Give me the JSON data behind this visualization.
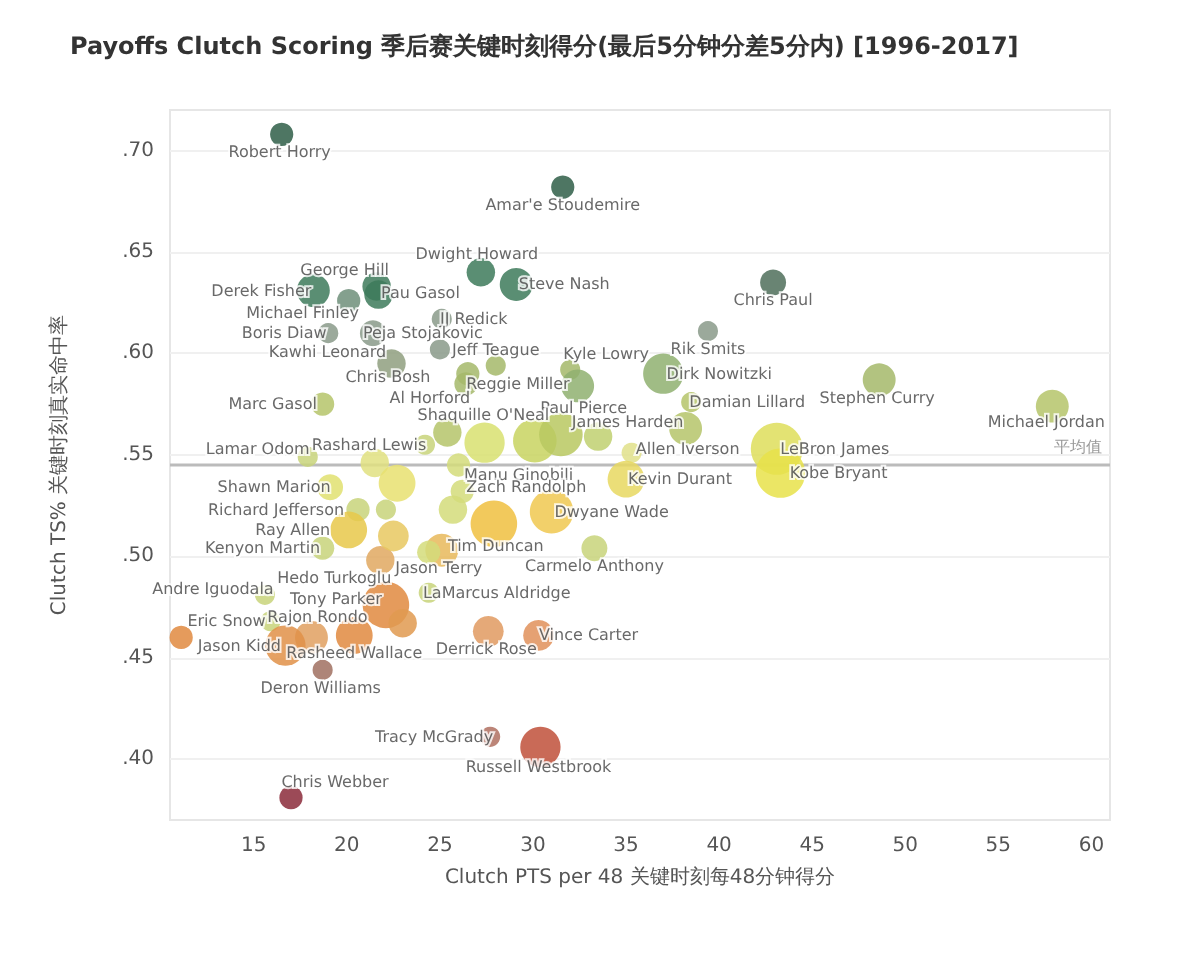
{
  "chart_data": {
    "type": "bubble",
    "title": "Payoffs Clutch Scoring 季后赛关键时刻得分(最后5分钟分差5分内) [1996-2017]",
    "xlabel": "Clutch PTS per 48 关键时刻每48分钟得分",
    "ylabel": "Clutch TS% 关键时刻真实命中率",
    "xlim": [
      10.5,
      61
    ],
    "xticks": [
      15,
      20,
      25,
      30,
      35,
      40,
      45,
      50,
      55,
      60
    ],
    "ylim": [
      0.37,
      0.72
    ],
    "yticks": [
      {
        "value": 0.4,
        "label": ".40"
      },
      {
        "value": 0.45,
        "label": ".45"
      },
      {
        "value": 0.5,
        "label": ".50"
      },
      {
        "value": 0.55,
        "label": ".55"
      },
      {
        "value": 0.6,
        "label": ".60"
      },
      {
        "value": 0.65,
        "label": ".65"
      },
      {
        "value": 0.7,
        "label": ".70"
      }
    ],
    "grid": "y",
    "ref_lines": [
      {
        "axis": "y",
        "value": 0.545,
        "label": "平均值",
        "color": "#bbbbbb"
      }
    ],
    "x": [
      16.5,
      31.6,
      27.2,
      18.2,
      20.1,
      21.6,
      21.7,
      29.1,
      25.1,
      19.0,
      21.4,
      25.0,
      28.0,
      22.4,
      26.4,
      26.5,
      32.0,
      32.4,
      18.7,
      25.4,
      24.2,
      17.9,
      26.0,
      42.9,
      39.4,
      37.0,
      38.5,
      48.6,
      57.9,
      38.2,
      35.3,
      43.1,
      43.3,
      35.0,
      19.1,
      20.6,
      20.1,
      18.7,
      26.2,
      31.0,
      25.1,
      24.4,
      33.3,
      15.6,
      21.8,
      22.1,
      24.4,
      15.9,
      18.1,
      16.7,
      20.4,
      27.6,
      30.3,
      18.7,
      27.7,
      30.4,
      17.0,
      11.1,
      23.0,
      27.4,
      30.1,
      31.5,
      33.5,
      21.5,
      22.7,
      25.7,
      27.9,
      22.5,
      22.1
    ],
    "values": [
      0.708,
      0.682,
      0.64,
      0.631,
      0.626,
      0.633,
      0.629,
      0.634,
      0.617,
      0.61,
      0.61,
      0.602,
      0.594,
      0.595,
      0.585,
      0.59,
      0.592,
      0.584,
      0.575,
      0.561,
      0.555,
      0.549,
      0.545,
      0.635,
      0.611,
      0.59,
      0.576,
      0.587,
      0.574,
      0.563,
      0.551,
      0.553,
      0.541,
      0.538,
      0.534,
      0.523,
      0.513,
      0.504,
      0.532,
      0.522,
      0.503,
      0.502,
      0.504,
      0.481,
      0.498,
      0.476,
      0.482,
      0.468,
      0.46,
      0.456,
      0.461,
      0.463,
      0.461,
      0.444,
      0.411,
      0.406,
      0.381,
      0.46,
      0.467,
      0.556,
      0.557,
      0.56,
      0.559,
      0.546,
      0.536,
      0.523,
      0.516,
      0.51,
      0.523
    ],
    "sizes": [
      0.2,
      0.2,
      0.3,
      0.4,
      0.2,
      0.3,
      0.3,
      0.4,
      0.15,
      0.15,
      0.25,
      0.15,
      0.15,
      0.3,
      0.2,
      0.2,
      0.15,
      0.4,
      0.2,
      0.3,
      0.15,
      0.15,
      0.2,
      0.25,
      0.15,
      0.6,
      0.15,
      0.4,
      0.4,
      0.4,
      0.15,
      1,
      0.9,
      0.5,
      0.25,
      0.2,
      0.5,
      0.2,
      0.2,
      0.7,
      0.4,
      0.2,
      0.25,
      0.15,
      0.3,
      0.8,
      0.15,
      0.15,
      0.4,
      0.6,
      0.5,
      0.35,
      0.35,
      0.15,
      0.15,
      0.6,
      0.2,
      0.2,
      0.3,
      0.6,
      0.7,
      0.7,
      0.3,
      0.3,
      0.5,
      0.3,
      0.8,
      0.35,
      0.15
    ],
    "colors": [
      "#2f5e48",
      "#2f5e48",
      "#3d7a5a",
      "#3d7a5a",
      "#6f8f7a",
      "#3d7a5a",
      "#3d7a5a",
      "#3d7a5a",
      "#8a9a8a",
      "#8a9a8a",
      "#8a9a8a",
      "#8a9a8a",
      "#a4b86a",
      "#8f9f7f",
      "#a4b86a",
      "#a4b86a",
      "#a4b86a",
      "#8fb070",
      "#b5c46a",
      "#b5c46a",
      "#c8d47a",
      "#c8d47a",
      "#d4dc7a",
      "#4f6e5a",
      "#8a9a8a",
      "#8fb070",
      "#b5c46a",
      "#a4b86a",
      "#b5c46a",
      "#b5c46a",
      "#e0e08a",
      "#dede5a",
      "#e8e24a",
      "#e8d860",
      "#e0e070",
      "#c8d47a",
      "#e8c84a",
      "#c8d47a",
      "#d4dc7a",
      "#f0c850",
      "#e8b85a",
      "#d4dc7a",
      "#c8d47a",
      "#c8d47a",
      "#e0a860",
      "#e08a40",
      "#c8d47a",
      "#c8d47a",
      "#e0a060",
      "#e09048",
      "#e08a40",
      "#e09a60",
      "#e0905a",
      "#a07060",
      "#b07060",
      "#c0503a",
      "#8b2a3a",
      "#e08a40",
      "#e09a50",
      "#d8e070",
      "#c8d460",
      "#b8c860",
      "#c0d070",
      "#e0e080",
      "#e8e070",
      "#d4dc7a",
      "#f0c040",
      "#e8c860",
      "#c8d47a"
    ],
    "annotations": [
      {
        "text": "Robert Horry",
        "x": 16.5,
        "y": 0.708
      },
      {
        "text": "Amar'e Stoudemire",
        "x": 31.6,
        "y": 0.682
      },
      {
        "text": "Dwight Howard",
        "x": 27.2,
        "y": 0.64
      },
      {
        "text": "Derek Fisher",
        "x": 18.2,
        "y": 0.631
      },
      {
        "text": "Michael Finley",
        "x": 20.1,
        "y": 0.626
      },
      {
        "text": "George Hill",
        "x": 21.6,
        "y": 0.633
      },
      {
        "text": "Pau Gasol",
        "x": 21.7,
        "y": 0.629
      },
      {
        "text": "Steve Nash",
        "x": 29.1,
        "y": 0.634
      },
      {
        "text": "JJ Redick",
        "x": 25.1,
        "y": 0.617
      },
      {
        "text": "Boris Diaw",
        "x": 19.0,
        "y": 0.61
      },
      {
        "text": "Peja Stojakovic",
        "x": 21.4,
        "y": 0.61
      },
      {
        "text": "Kawhi Leonard",
        "x": 22.4,
        "y": 0.595
      },
      {
        "text": "Jeff Teague",
        "x": 28.0,
        "y": 0.594
      },
      {
        "text": "Chris Bosh",
        "x": 25.0,
        "y": 0.602
      },
      {
        "text": "Reggie Miller",
        "x": 26.4,
        "y": 0.585
      },
      {
        "text": "Al Horford",
        "x": 26.5,
        "y": 0.59
      },
      {
        "text": "Kyle Lowry",
        "x": 32.0,
        "y": 0.592
      },
      {
        "text": "Paul Pierce",
        "x": 32.4,
        "y": 0.584
      },
      {
        "text": "Marc Gasol",
        "x": 18.7,
        "y": 0.575
      },
      {
        "text": "Shaquille O'Neal",
        "x": 25.4,
        "y": 0.561
      },
      {
        "text": "Rashard Lewis",
        "x": 24.2,
        "y": 0.555
      },
      {
        "text": "Lamar Odom",
        "x": 17.9,
        "y": 0.549
      },
      {
        "text": "Manu Ginobili",
        "x": 26.0,
        "y": 0.545
      },
      {
        "text": "Chris Paul",
        "x": 42.9,
        "y": 0.635
      },
      {
        "text": "Rik Smits",
        "x": 39.4,
        "y": 0.611
      },
      {
        "text": "Dirk Nowitzki",
        "x": 37.0,
        "y": 0.59
      },
      {
        "text": "Damian Lillard",
        "x": 38.5,
        "y": 0.576
      },
      {
        "text": "Stephen Curry",
        "x": 48.6,
        "y": 0.587
      },
      {
        "text": "Michael Jordan",
        "x": 57.9,
        "y": 0.574
      },
      {
        "text": "James Harden",
        "x": 38.2,
        "y": 0.563
      },
      {
        "text": "Allen Iverson",
        "x": 35.3,
        "y": 0.551
      },
      {
        "text": "LeBron James",
        "x": 43.1,
        "y": 0.553
      },
      {
        "text": "Kobe Bryant",
        "x": 43.3,
        "y": 0.541
      },
      {
        "text": "Kevin Durant",
        "x": 35.0,
        "y": 0.538
      },
      {
        "text": "Shawn Marion",
        "x": 19.1,
        "y": 0.534
      },
      {
        "text": "Richard Jefferson",
        "x": 20.6,
        "y": 0.523
      },
      {
        "text": "Ray Allen",
        "x": 20.1,
        "y": 0.513
      },
      {
        "text": "Kenyon Martin",
        "x": 18.7,
        "y": 0.504
      },
      {
        "text": "Zach Randolph",
        "x": 26.2,
        "y": 0.532
      },
      {
        "text": "Dwyane Wade",
        "x": 31.0,
        "y": 0.522
      },
      {
        "text": "Tim Duncan",
        "x": 25.1,
        "y": 0.503
      },
      {
        "text": "Jason Terry",
        "x": 24.4,
        "y": 0.502
      },
      {
        "text": "Carmelo Anthony",
        "x": 33.3,
        "y": 0.504
      },
      {
        "text": "Andre Iguodala",
        "x": 15.6,
        "y": 0.481
      },
      {
        "text": "Hedo Turkoglu",
        "x": 21.8,
        "y": 0.498
      },
      {
        "text": "Tony Parker",
        "x": 22.1,
        "y": 0.476
      },
      {
        "text": "LaMarcus Aldridge",
        "x": 24.4,
        "y": 0.482
      },
      {
        "text": "Eric Snow",
        "x": 15.9,
        "y": 0.468
      },
      {
        "text": "Rajon Rondo",
        "x": 18.1,
        "y": 0.46
      },
      {
        "text": "Jason Kidd",
        "x": 16.7,
        "y": 0.456
      },
      {
        "text": "Rasheed Wallace",
        "x": 20.4,
        "y": 0.461
      },
      {
        "text": "Derrick Rose",
        "x": 27.6,
        "y": 0.463
      },
      {
        "text": "Vince Carter",
        "x": 30.3,
        "y": 0.461
      },
      {
        "text": "Deron Williams",
        "x": 18.7,
        "y": 0.444
      },
      {
        "text": "Tracy McGrady",
        "x": 27.7,
        "y": 0.411
      },
      {
        "text": "Russell Westbrook",
        "x": 30.4,
        "y": 0.406
      },
      {
        "text": "Chris Webber",
        "x": 17.0,
        "y": 0.381
      }
    ]
  }
}
